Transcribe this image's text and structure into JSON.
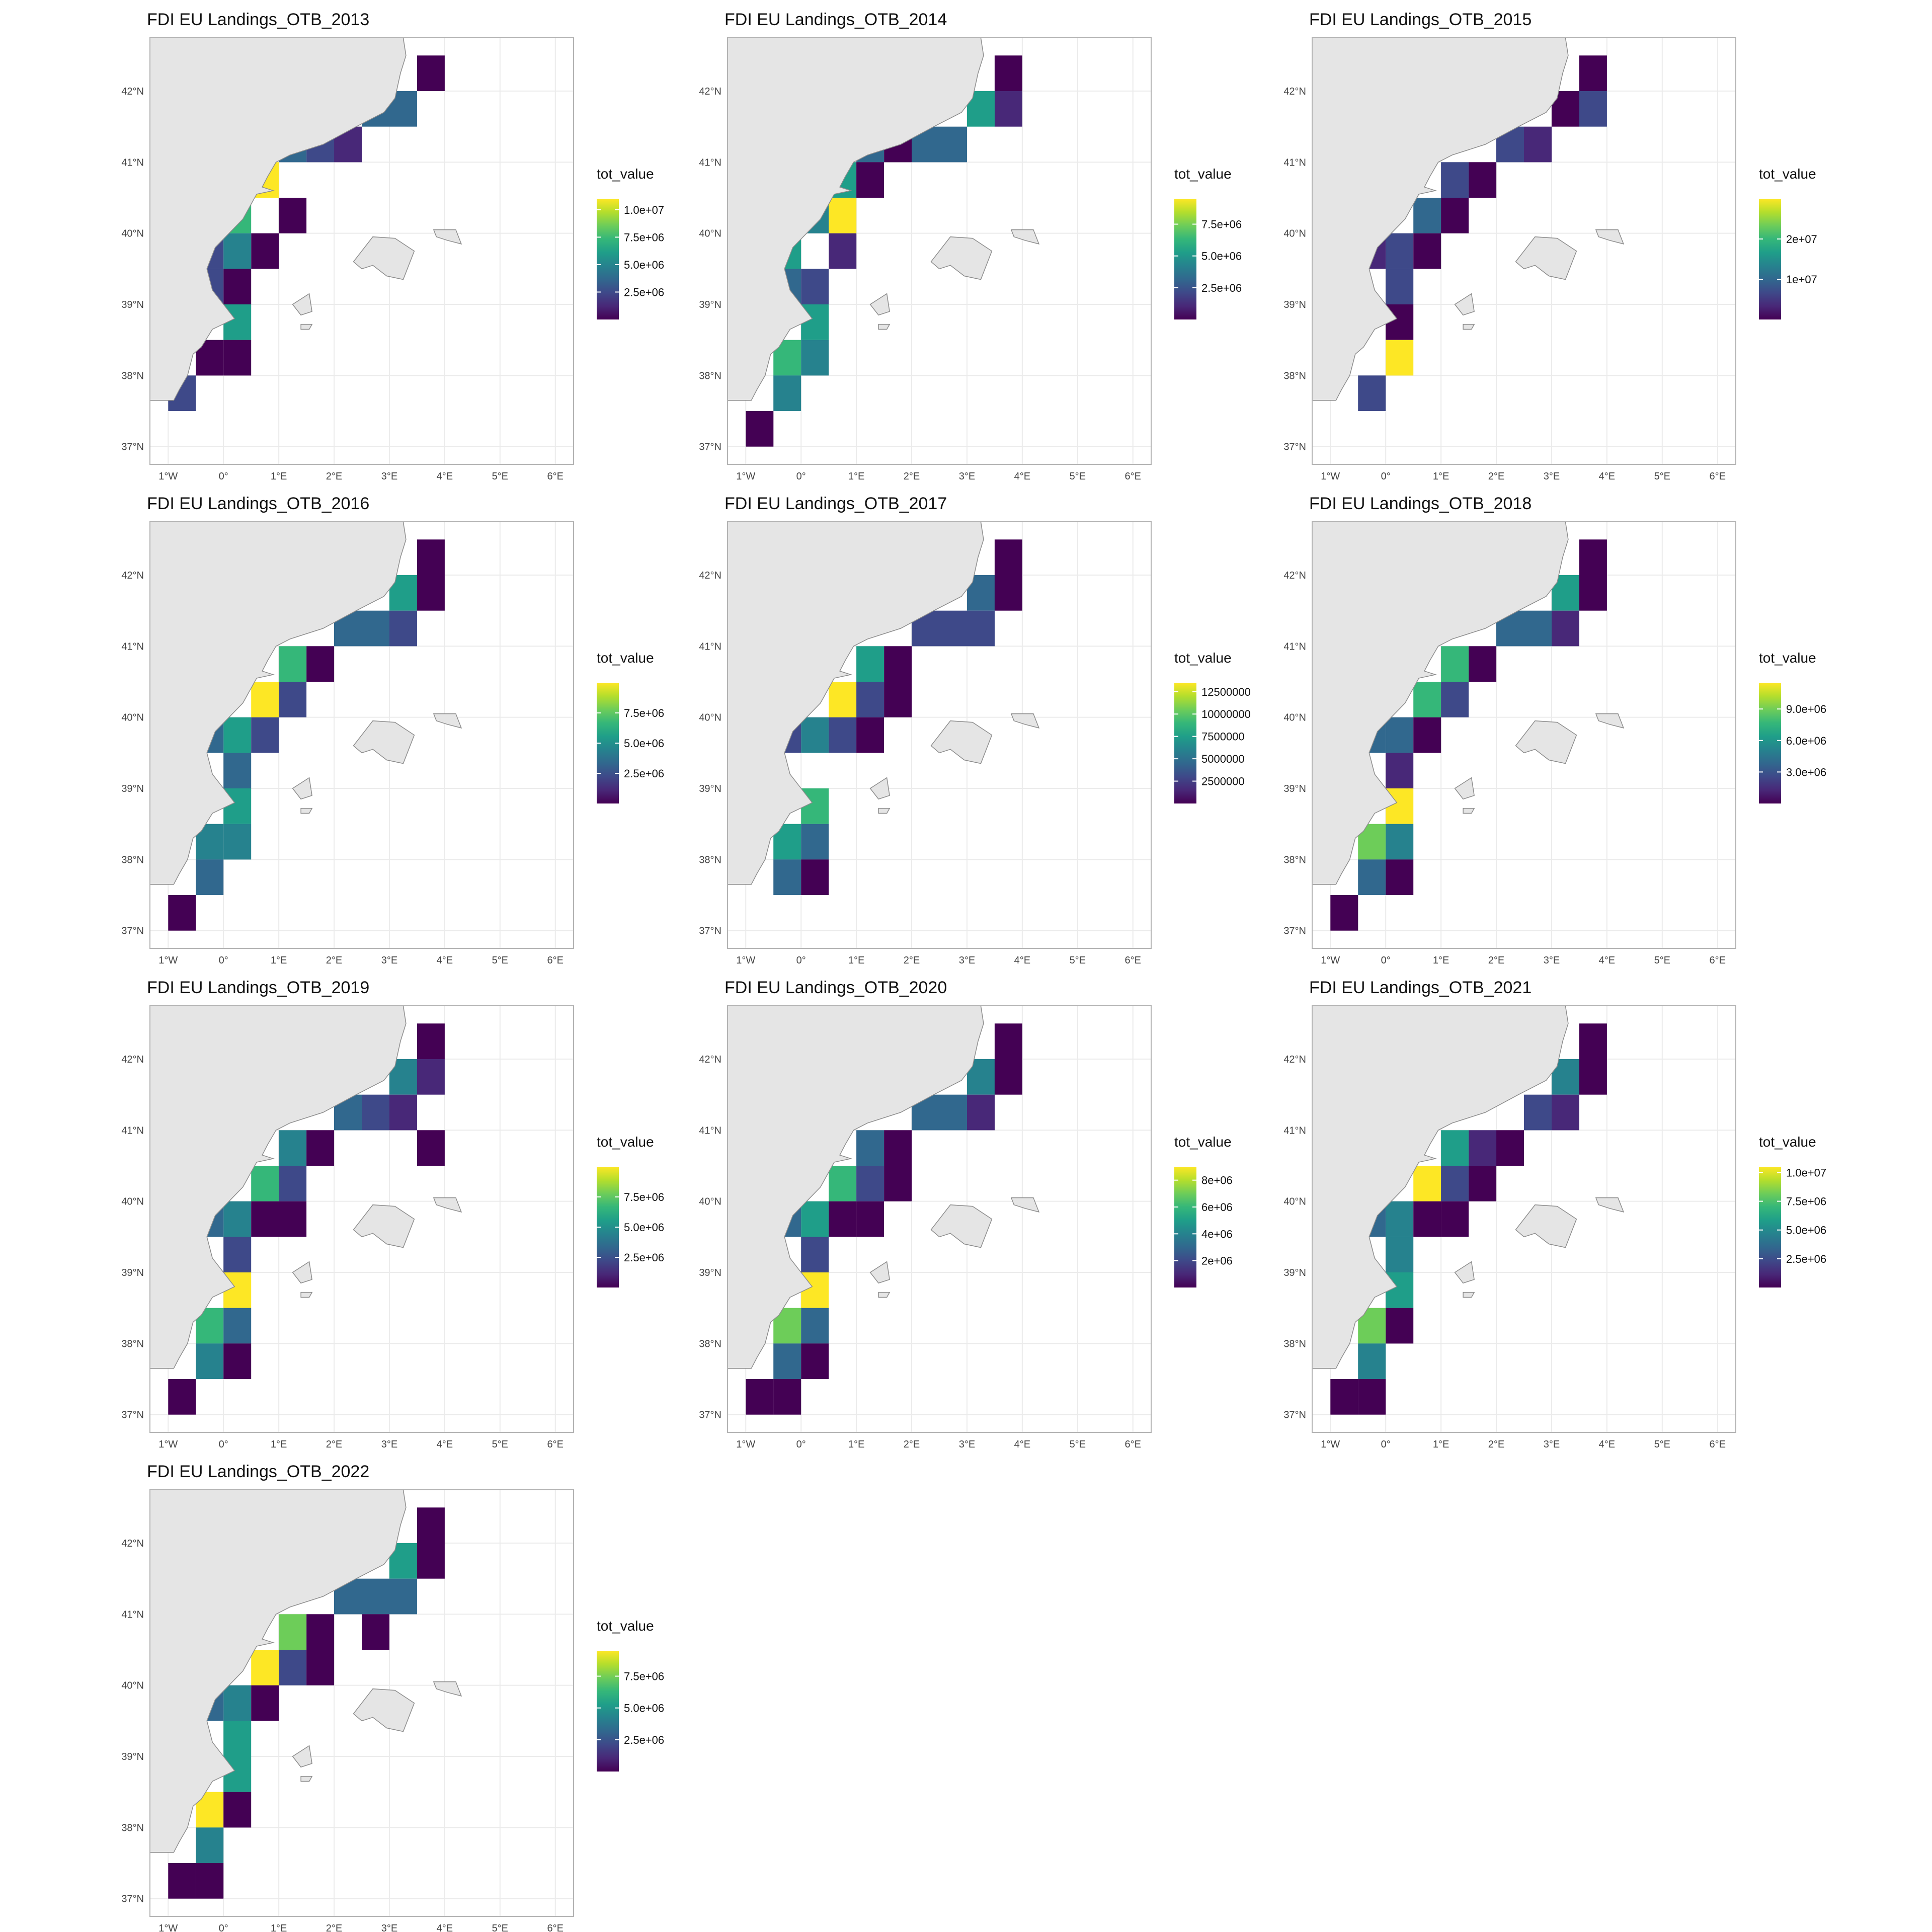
{
  "figure": {
    "lat_labels": [
      "42°N",
      "41°N",
      "40°N",
      "39°N",
      "38°N",
      "37°N"
    ],
    "lon_labels": [
      "1°W",
      "0°",
      "1°E",
      "2°E",
      "3°E",
      "4°E",
      "5°E",
      "6°E"
    ],
    "legend_title": "tot_value",
    "colors": {
      "land": "#e5e5e5",
      "land_border": "#8c8c8c",
      "grid": "#ebebeb",
      "panel_border": "#b3b3b3",
      "viridis": [
        "#440154",
        "#482878",
        "#3e4989",
        "#31688e",
        "#26828e",
        "#1f9e89",
        "#35b779",
        "#6dcd59",
        "#b4de2c",
        "#fde725"
      ]
    }
  },
  "chart_data": [
    {
      "type": "heatmap",
      "title": "FDI EU Landings_OTB_2013",
      "color_scale": "viridis",
      "legend": {
        "title": "tot_value",
        "ticks": [
          "1.0e+07",
          "7.5e+06",
          "5.0e+06",
          "2.5e+06"
        ],
        "range": [
          0,
          11000000
        ],
        "tick_values": [
          10000000,
          7500000,
          5000000,
          2500000
        ]
      }
    },
    {
      "type": "heatmap",
      "title": "FDI EU Landings_OTB_2014",
      "color_scale": "viridis",
      "legend": {
        "title": "tot_value",
        "ticks": [
          "7.5e+06",
          "5.0e+06",
          "2.5e+06"
        ],
        "range": [
          0,
          9500000
        ],
        "tick_values": [
          7500000,
          5000000,
          2500000
        ]
      }
    },
    {
      "type": "heatmap",
      "title": "FDI EU Landings_OTB_2015",
      "color_scale": "viridis",
      "legend": {
        "title": "tot_value",
        "ticks": [
          "2e+07",
          "1e+07"
        ],
        "range": [
          0,
          30000000
        ],
        "tick_values": [
          20000000,
          10000000
        ]
      }
    },
    {
      "type": "heatmap",
      "title": "FDI EU Landings_OTB_2016",
      "color_scale": "viridis",
      "legend": {
        "title": "tot_value",
        "ticks": [
          "7.5e+06",
          "5.0e+06",
          "2.5e+06"
        ],
        "range": [
          0,
          10000000
        ],
        "tick_values": [
          7500000,
          5000000,
          2500000
        ]
      }
    },
    {
      "type": "heatmap",
      "title": "FDI EU Landings_OTB_2017",
      "color_scale": "viridis",
      "legend": {
        "title": "tot_value",
        "ticks": [
          "12500000",
          "10000000",
          "7500000",
          "5000000",
          "2500000"
        ],
        "range": [
          0,
          13500000
        ],
        "tick_values": [
          12500000,
          10000000,
          7500000,
          5000000,
          2500000
        ]
      }
    },
    {
      "type": "heatmap",
      "title": "FDI EU Landings_OTB_2018",
      "color_scale": "viridis",
      "legend": {
        "title": "tot_value",
        "ticks": [
          "9.0e+06",
          "6.0e+06",
          "3.0e+06"
        ],
        "range": [
          0,
          11500000
        ],
        "tick_values": [
          9000000,
          6000000,
          3000000
        ]
      }
    },
    {
      "type": "heatmap",
      "title": "FDI EU Landings_OTB_2019",
      "color_scale": "viridis",
      "legend": {
        "title": "tot_value",
        "ticks": [
          "7.5e+06",
          "5.0e+06",
          "2.5e+06"
        ],
        "range": [
          0,
          10000000
        ],
        "tick_values": [
          7500000,
          5000000,
          2500000
        ]
      }
    },
    {
      "type": "heatmap",
      "title": "FDI EU Landings_OTB_2020",
      "color_scale": "viridis",
      "legend": {
        "title": "tot_value",
        "ticks": [
          "8e+06",
          "6e+06",
          "4e+06",
          "2e+06"
        ],
        "range": [
          0,
          9000000
        ],
        "tick_values": [
          8000000,
          6000000,
          4000000,
          2000000
        ]
      }
    },
    {
      "type": "heatmap",
      "title": "FDI EU Landings_OTB_2021",
      "color_scale": "viridis",
      "legend": {
        "title": "tot_value",
        "ticks": [
          "1.0e+07",
          "7.5e+06",
          "5.0e+06",
          "2.5e+06"
        ],
        "range": [
          0,
          10500000
        ],
        "tick_values": [
          10000000,
          7500000,
          5000000,
          2500000
        ]
      }
    },
    {
      "type": "heatmap",
      "title": "FDI EU Landings_OTB_2022",
      "color_scale": "viridis",
      "legend": {
        "title": "tot_value",
        "ticks": [
          "7.5e+06",
          "5.0e+06",
          "2.5e+06"
        ],
        "range": [
          0,
          9500000
        ],
        "tick_values": [
          7500000,
          5000000,
          2500000
        ]
      }
    }
  ]
}
